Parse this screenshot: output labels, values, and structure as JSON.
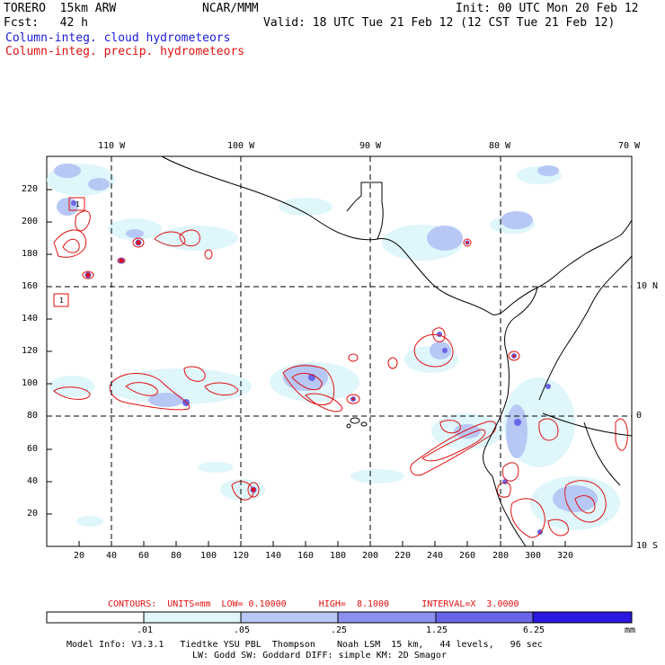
{
  "header": {
    "model": "TORERO  15km ARW",
    "org": "NCAR/MMM",
    "init": "Init: 00 UTC Mon 20 Feb 12",
    "fcst": "Fcst:   42 h",
    "valid": "Valid: 18 UTC Tue 21 Feb 12 (12 CST Tue 21 Feb 12)",
    "field_cloud": "Column-integ. cloud hydrometeors",
    "field_precip": "Column-integ. precip. hydrometeors"
  },
  "colors": {
    "cloud_text": "#1a1ad6",
    "precip_text": "#e01010",
    "shade_1": "#dff6fb",
    "shade_2": "#b8c8f5",
    "shade_3": "#8c90ee",
    "shade_4": "#6a64e8",
    "shade_5": "#4a3fe0",
    "shade_6": "#2a18e0",
    "contour": "#e01010"
  },
  "map": {
    "lon_labels": [
      "110 W",
      "100 W",
      "90 W",
      "80 W",
      "70 W"
    ],
    "lat_labels": [
      "10 N",
      "0",
      "10 S"
    ],
    "x_ticks": [
      "20",
      "40",
      "60",
      "80",
      "100",
      "120",
      "140",
      "160",
      "180",
      "200",
      "220",
      "240",
      "260",
      "280",
      "300",
      "320"
    ],
    "y_ticks": [
      "20",
      "40",
      "60",
      "80",
      "100",
      "120",
      "140",
      "160",
      "180",
      "200",
      "220"
    ],
    "box_labels": [
      "1",
      "1"
    ]
  },
  "footer": {
    "contours_line": "CONTOURS:  UNITS=mm  LOW= 0.10000      HIGH=  8.1000      INTERVAL=X  3.0000",
    "colorbar_levels": [
      ".01",
      ".05",
      ".25",
      "1.25",
      "6.25"
    ],
    "colorbar_unit": "mm",
    "model_info_1": "Model Info: V3.3.1   Tiedtke YSU PBL  Thompson    Noah LSM  15 km,   44 levels,   96 sec",
    "model_info_2": "LW: Godd SW: Goddard DIFF: simple KM: 2D Smagor"
  }
}
